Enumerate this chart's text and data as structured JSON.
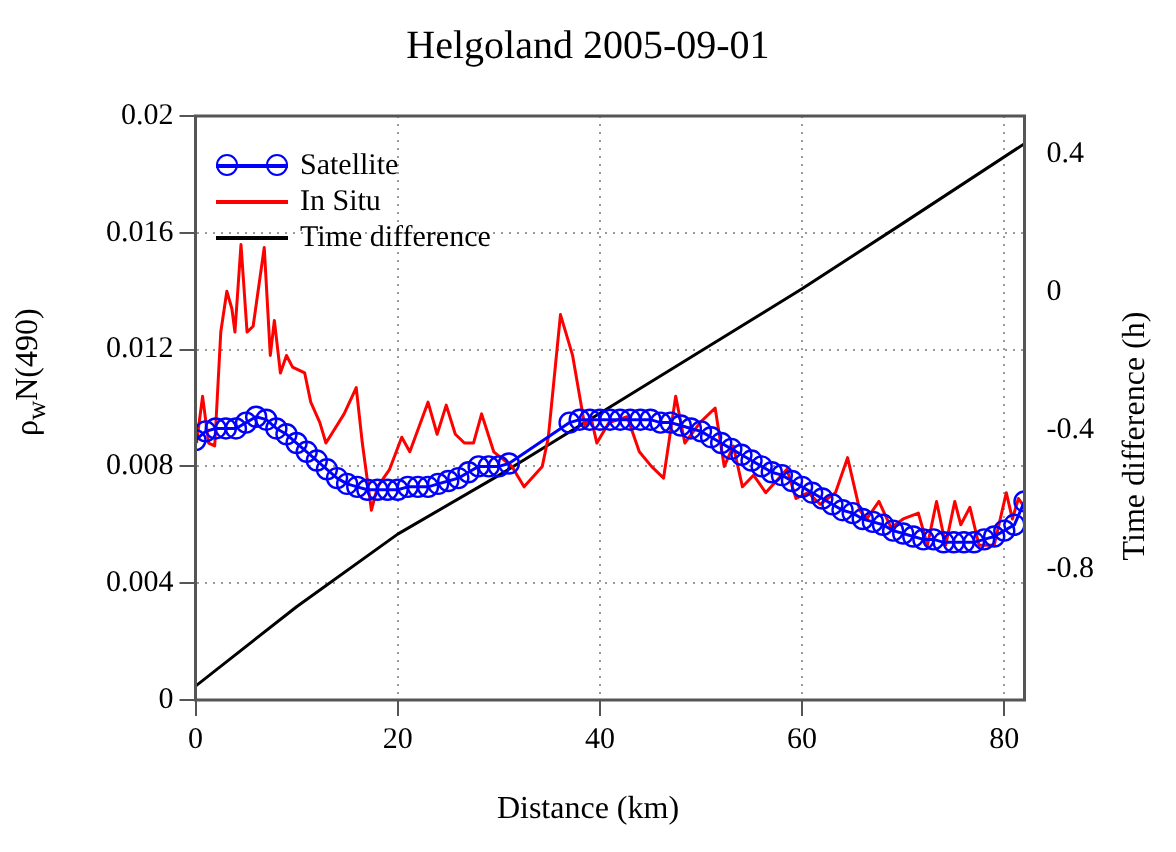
{
  "chart_data": {
    "type": "line",
    "title": "Helgoland 2005-09-01",
    "xlabel": "Distance (km)",
    "ylabel": "ρ$_{w}$N(490)",
    "y2label": "Time difference (h)",
    "xlim": [
      0,
      82
    ],
    "xticks": [
      0,
      20,
      40,
      60,
      80
    ],
    "ylim": [
      0,
      0.02
    ],
    "yticks": [
      0,
      0.004,
      0.008,
      0.012,
      0.016,
      0.02
    ],
    "y2lim": [
      -1.18,
      0.51
    ],
    "y2ticks": [
      -0.8,
      -0.4,
      0,
      0.4
    ],
    "grid": true,
    "legend": "top left",
    "series": [
      {
        "name": "Satellite",
        "color": "#0000ff",
        "marker": "circle",
        "x": [
          0,
          1,
          2,
          3,
          4,
          5,
          6,
          7,
          8,
          9,
          10,
          11,
          12,
          13,
          14,
          15,
          16,
          17,
          18,
          19,
          20,
          21,
          22,
          23,
          24,
          25,
          26,
          27,
          28,
          29,
          30,
          31,
          37,
          38,
          39,
          40,
          41,
          42,
          43,
          44,
          45,
          46,
          47,
          48,
          49,
          50,
          51,
          52,
          53,
          54,
          55,
          56,
          57,
          58,
          59,
          60,
          61,
          62,
          63,
          64,
          65,
          66,
          67,
          68,
          69,
          70,
          71,
          72,
          73,
          74,
          75,
          76,
          77,
          78,
          79,
          80,
          81,
          82
        ],
        "values": [
          0.0089,
          0.0092,
          0.0093,
          0.0093,
          0.0093,
          0.0095,
          0.0097,
          0.0096,
          0.0093,
          0.0091,
          0.0088,
          0.0085,
          0.0082,
          0.0079,
          0.0076,
          0.0074,
          0.0073,
          0.0072,
          0.0072,
          0.0072,
          0.0072,
          0.0073,
          0.0073,
          0.0073,
          0.0074,
          0.0075,
          0.0076,
          0.0078,
          0.008,
          0.008,
          0.008,
          0.0081,
          0.0095,
          0.0096,
          0.0096,
          0.0096,
          0.0096,
          0.0096,
          0.0096,
          0.0096,
          0.0096,
          0.0095,
          0.0095,
          0.0094,
          0.0093,
          0.0092,
          0.009,
          0.0088,
          0.0086,
          0.0084,
          0.0082,
          0.008,
          0.0078,
          0.0077,
          0.0075,
          0.0073,
          0.0071,
          0.0069,
          0.0067,
          0.0065,
          0.0064,
          0.0062,
          0.0061,
          0.006,
          0.0058,
          0.0057,
          0.0056,
          0.0055,
          0.0055,
          0.0054,
          0.0054,
          0.0054,
          0.0054,
          0.0055,
          0.0056,
          0.0058,
          0.006,
          0.0068
        ]
      },
      {
        "name": "In Situ",
        "color": "#ff0000",
        "marker": "none",
        "x": [
          0.1,
          0.7,
          1.3,
          1.9,
          2.5,
          3.1,
          3.6,
          3.9,
          4.5,
          5.1,
          5.7,
          6.8,
          7.4,
          7.8,
          8.4,
          9.0,
          9.6,
          10.8,
          11.4,
          12.3,
          12.9,
          13.8,
          14.7,
          15.9,
          16.5,
          17.4,
          18.0,
          19.2,
          20.4,
          21.2,
          23.0,
          23.9,
          24.8,
          25.7,
          26.6,
          27.5,
          28.3,
          29.5,
          31.3,
          32.5,
          34.3,
          34.9,
          36.1,
          37.3,
          38.5,
          39.1,
          39.7,
          40.9,
          42.7,
          43.9,
          45.1,
          46.3,
          47.5,
          48.4,
          49.9,
          51.4,
          52.3,
          53.2,
          54.1,
          55.2,
          56.4,
          58.5,
          59.4,
          60.6,
          61.8,
          63.3,
          64.5,
          65.7,
          66.4,
          67.6,
          68.8,
          70.0,
          71.5,
          72.4,
          73.3,
          74.2,
          75.1,
          75.7,
          76.6,
          77.5,
          79.0,
          80.2,
          80.8,
          81.4,
          82.0
        ],
        "values": [
          0.0088,
          0.0104,
          0.0088,
          0.0087,
          0.0126,
          0.014,
          0.0134,
          0.0126,
          0.0156,
          0.0126,
          0.0128,
          0.0155,
          0.0118,
          0.013,
          0.0112,
          0.0118,
          0.0114,
          0.0112,
          0.0102,
          0.0095,
          0.0088,
          0.0093,
          0.0098,
          0.0107,
          0.0088,
          0.0065,
          0.0073,
          0.0079,
          0.009,
          0.0085,
          0.0102,
          0.0091,
          0.0101,
          0.0091,
          0.0088,
          0.0088,
          0.0098,
          0.0085,
          0.008,
          0.0073,
          0.008,
          0.009,
          0.0132,
          0.0118,
          0.0094,
          0.0097,
          0.0088,
          0.0095,
          0.0097,
          0.0085,
          0.008,
          0.0076,
          0.0104,
          0.0088,
          0.0095,
          0.01,
          0.008,
          0.0087,
          0.0073,
          0.0077,
          0.0071,
          0.0079,
          0.0069,
          0.0071,
          0.0067,
          0.0071,
          0.0083,
          0.0065,
          0.0062,
          0.0068,
          0.0059,
          0.0062,
          0.0064,
          0.0053,
          0.0068,
          0.0053,
          0.0068,
          0.006,
          0.0066,
          0.0053,
          0.0053,
          0.0071,
          0.0062,
          0.0069,
          0.0066
        ]
      },
      {
        "name": "Time difference",
        "color": "#000000",
        "marker": "none",
        "axis": "y2",
        "x": [
          0,
          10,
          20,
          30,
          40,
          50,
          60,
          70,
          82
        ],
        "values": [
          -1.14,
          -0.91,
          -0.7,
          -0.53,
          -0.35,
          -0.17,
          0.01,
          0.2,
          0.43
        ]
      }
    ]
  }
}
